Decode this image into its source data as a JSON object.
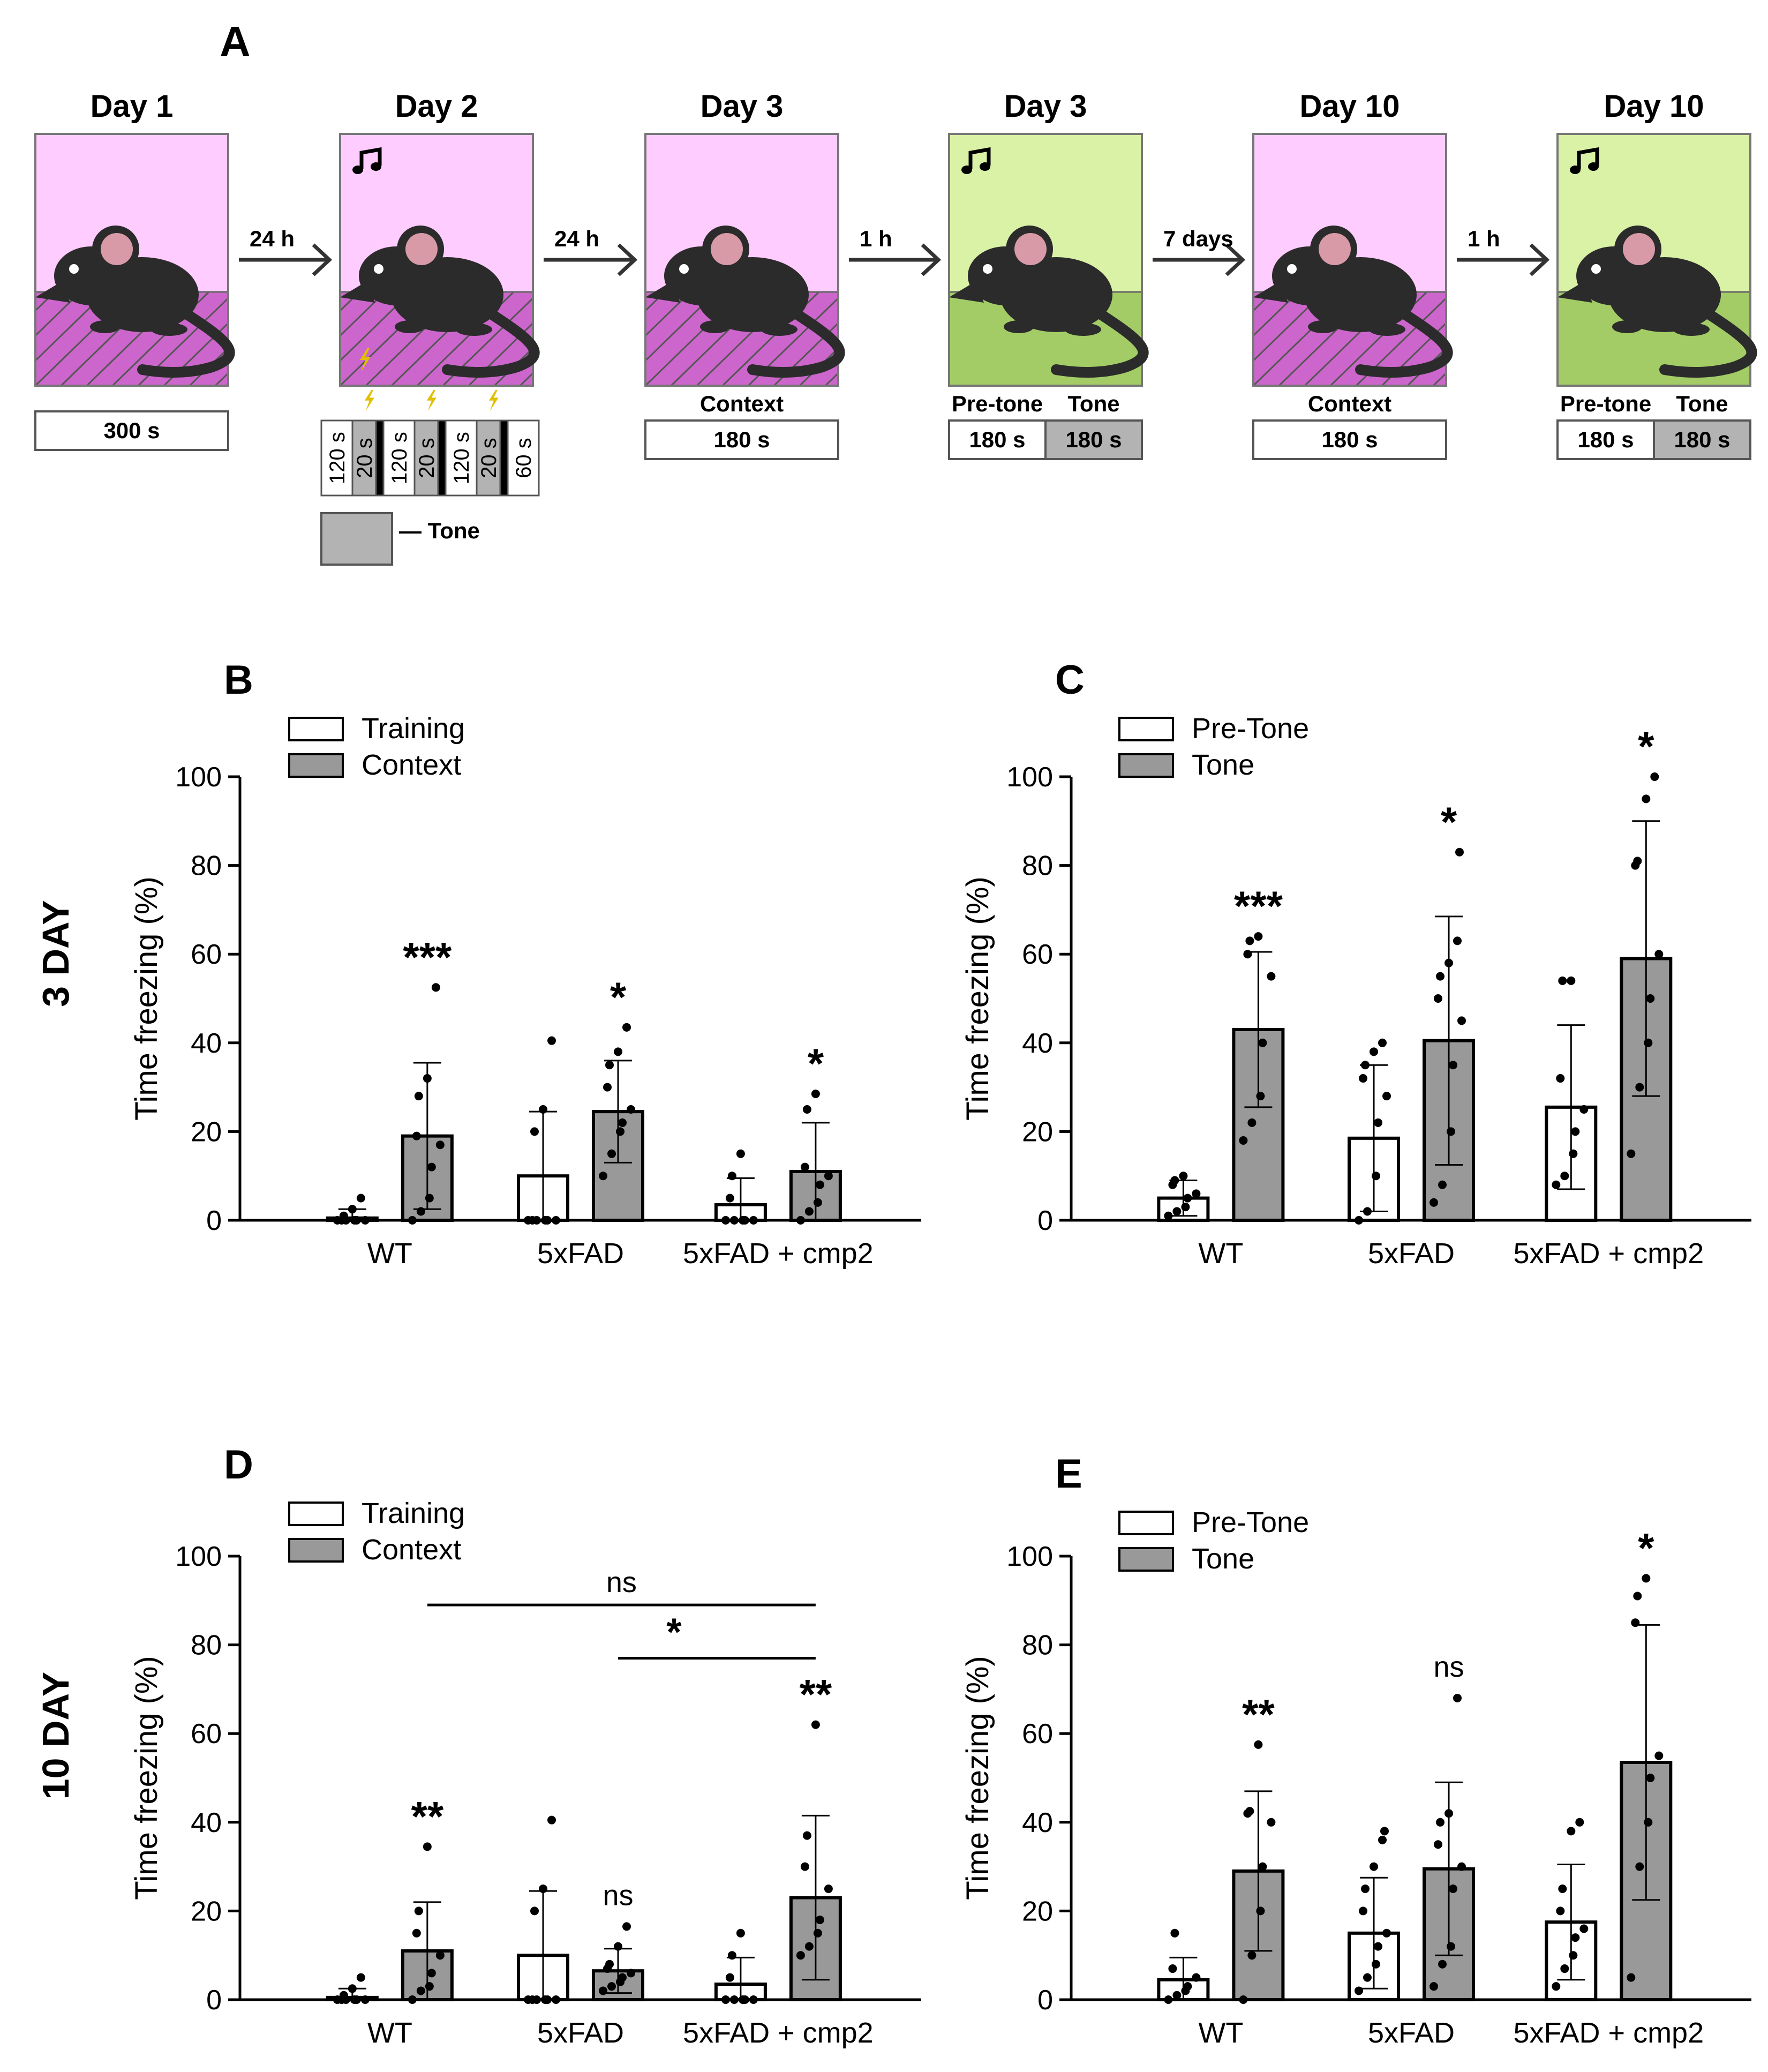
{
  "colors": {
    "pink": "#ffccff",
    "pink_floor": "#cc66cc",
    "green": "#d9f2a6",
    "green_floor": "#a3cc66",
    "mouse": "#2b2b2b",
    "ear": "#d99aa8",
    "tone_gray": "#b3b3b3",
    "bar_gray": "#999999",
    "shock": "#e0c000"
  },
  "panel_a": {
    "label": "A",
    "schedule_tone_label": "— Tone",
    "boxes": [
      {
        "day": "Day 1",
        "color": "pink",
        "note": false,
        "shock": false,
        "caption": "",
        "timers": [
          "300 s"
        ],
        "shaded": [
          false
        ]
      },
      {
        "day": "Day 2",
        "color": "pink",
        "note": true,
        "shock": true,
        "caption": "",
        "timers": [],
        "shaded": []
      },
      {
        "day": "Day 3",
        "color": "pink",
        "note": false,
        "shock": false,
        "caption": "Context",
        "timers": [
          "180 s"
        ],
        "shaded": [
          false
        ]
      },
      {
        "day": "Day 3",
        "color": "green",
        "note": true,
        "shock": false,
        "caption": "",
        "sub": [
          "Pre-tone",
          "Tone"
        ],
        "timers": [
          "180 s",
          "180 s"
        ],
        "shaded": [
          false,
          true
        ]
      },
      {
        "day": "Day 10",
        "color": "pink",
        "note": false,
        "shock": false,
        "caption": "Context",
        "timers": [
          "180 s"
        ],
        "shaded": [
          false
        ]
      },
      {
        "day": "Day 10",
        "color": "green",
        "note": true,
        "shock": false,
        "caption": "",
        "sub": [
          "Pre-tone",
          "Tone"
        ],
        "timers": [
          "180 s",
          "180 s"
        ],
        "shaded": [
          false,
          true
        ]
      }
    ],
    "arrows": [
      "24 h",
      "24 h",
      "1 h",
      "7 days",
      "1 h"
    ],
    "schedule": [
      {
        "label": "120 s",
        "type": "plain"
      },
      {
        "label": "20 s",
        "type": "tone"
      },
      {
        "label": "",
        "type": "shock"
      },
      {
        "label": "120 s",
        "type": "plain"
      },
      {
        "label": "20 s",
        "type": "tone"
      },
      {
        "label": "",
        "type": "shock"
      },
      {
        "label": "120 s",
        "type": "plain"
      },
      {
        "label": "20 s",
        "type": "tone"
      },
      {
        "label": "",
        "type": "shock"
      },
      {
        "label": "60 s",
        "type": "plain"
      }
    ]
  },
  "row_labels": [
    "3 DAY",
    "10 DAY"
  ],
  "chart_data": [
    {
      "panel": "B",
      "type": "bar",
      "ylabel": "Time freezing (%)",
      "ylim": [
        0,
        100
      ],
      "yticks": [
        0,
        20,
        40,
        60,
        80,
        100
      ],
      "categories": [
        "WT",
        "5xFAD",
        "5xFAD + cmp2"
      ],
      "legend": [
        "Training",
        "Context"
      ],
      "series": [
        {
          "name": "Training",
          "values": [
            0.5,
            10,
            3.5
          ],
          "err": [
            2,
            14.5,
            6
          ],
          "points": [
            [
              0,
              0,
              0,
              0,
              0,
              0,
              1,
              2.5,
              5
            ],
            [
              0,
              0,
              0,
              0,
              0,
              0,
              20,
              25,
              40.5
            ],
            [
              0,
              0,
              0,
              0,
              0,
              5,
              10,
              15
            ]
          ]
        },
        {
          "name": "Context",
          "values": [
            19,
            24.5,
            11
          ],
          "err": [
            16.5,
            11.5,
            11
          ],
          "points": [
            [
              0,
              2,
              5,
              12,
              17,
              19,
              28,
              32,
              52.5
            ],
            [
              10,
              15,
              20,
              22,
              25,
              30,
              35,
              38,
              43.5
            ],
            [
              0,
              2,
              4,
              8,
              10,
              12,
              25,
              28.5
            ]
          ]
        }
      ],
      "sig": [
        "***",
        "*",
        "*"
      ],
      "brackets": []
    },
    {
      "panel": "C",
      "type": "bar",
      "ylabel": "Time freezing (%)",
      "ylim": [
        0,
        100
      ],
      "yticks": [
        0,
        20,
        40,
        60,
        80,
        100
      ],
      "categories": [
        "WT",
        "5xFAD",
        "5xFAD + cmp2"
      ],
      "legend": [
        "Pre-Tone",
        "Tone"
      ],
      "series": [
        {
          "name": "Pre-Tone",
          "values": [
            5,
            18.5,
            25.5
          ],
          "err": [
            4,
            16.5,
            18.5
          ],
          "points": [
            [
              1,
              2,
              3,
              5,
              6,
              8,
              9,
              10
            ],
            [
              0,
              2,
              10,
              22,
              28,
              32,
              35,
              38,
              40
            ],
            [
              8,
              10,
              15,
              20,
              25,
              32,
              54,
              54
            ]
          ]
        },
        {
          "name": "Tone",
          "values": [
            43,
            40.5,
            59
          ],
          "err": [
            17.5,
            28,
            31
          ],
          "points": [
            [
              18,
              22,
              28,
              40,
              55,
              60,
              63,
              64
            ],
            [
              4,
              8,
              20,
              35,
              45,
              50,
              55,
              58,
              63,
              83
            ],
            [
              15,
              30,
              40,
              50,
              60,
              80,
              81,
              95,
              100
            ]
          ]
        }
      ],
      "sig": [
        "***",
        "*",
        "*"
      ],
      "brackets": []
    },
    {
      "panel": "D",
      "type": "bar",
      "ylabel": "Time freezing (%)",
      "ylim": [
        0,
        100
      ],
      "yticks": [
        0,
        20,
        40,
        60,
        80,
        100
      ],
      "categories": [
        "WT",
        "5xFAD",
        "5xFAD + cmp2"
      ],
      "legend": [
        "Training",
        "Context"
      ],
      "series": [
        {
          "name": "Training",
          "values": [
            0.5,
            10,
            3.5
          ],
          "err": [
            2,
            14.5,
            6
          ],
          "points": [
            [
              0,
              0,
              0,
              0,
              0,
              0,
              1,
              2.5,
              5
            ],
            [
              0,
              0,
              0,
              0,
              0,
              0,
              20,
              25,
              40.5
            ],
            [
              0,
              0,
              0,
              0,
              0,
              5,
              10,
              15
            ]
          ]
        },
        {
          "name": "Context",
          "values": [
            11,
            6.5,
            23
          ],
          "err": [
            11,
            5,
            18.5
          ],
          "points": [
            [
              0,
              2,
              3,
              6,
              10,
              15,
              20,
              34.5
            ],
            [
              2,
              3,
              4,
              5,
              6,
              7,
              8,
              12,
              16.5
            ],
            [
              10,
              12,
              15,
              18,
              25,
              30,
              37,
              62
            ]
          ]
        }
      ],
      "sig": [
        "**",
        "ns",
        "**"
      ],
      "brackets": [
        {
          "from": 0,
          "to": 2,
          "y": 89,
          "label": "ns"
        },
        {
          "from": 1,
          "to": 2,
          "y": 77,
          "label": "*"
        }
      ]
    },
    {
      "panel": "E",
      "type": "bar",
      "ylabel": "Time freezing (%)",
      "ylim": [
        0,
        100
      ],
      "yticks": [
        0,
        20,
        40,
        60,
        80,
        100
      ],
      "categories": [
        "WT",
        "5xFAD",
        "5xFAD + cmp2"
      ],
      "legend": [
        "Pre-Tone",
        "Tone"
      ],
      "series": [
        {
          "name": "Pre-Tone",
          "values": [
            4.5,
            15,
            17.5
          ],
          "err": [
            5,
            12.5,
            13
          ],
          "points": [
            [
              0,
              1,
              2,
              3,
              5,
              7,
              15
            ],
            [
              2,
              5,
              8,
              12,
              15,
              20,
              25,
              30,
              36,
              38
            ],
            [
              3,
              7,
              10,
              14,
              16,
              20,
              25,
              38,
              40
            ]
          ]
        },
        {
          "name": "Tone",
          "values": [
            29,
            29.5,
            53.5
          ],
          "err": [
            18,
            19.5,
            31
          ],
          "points": [
            [
              0,
              10,
              20,
              30,
              40,
              42,
              42.5,
              57.5
            ],
            [
              3,
              8,
              12,
              25,
              30,
              35,
              40,
              42,
              68
            ],
            [
              5,
              30,
              40,
              50,
              55,
              85,
              91,
              95
            ]
          ]
        }
      ],
      "sig": [
        "**",
        "ns",
        "*"
      ],
      "brackets": []
    }
  ]
}
